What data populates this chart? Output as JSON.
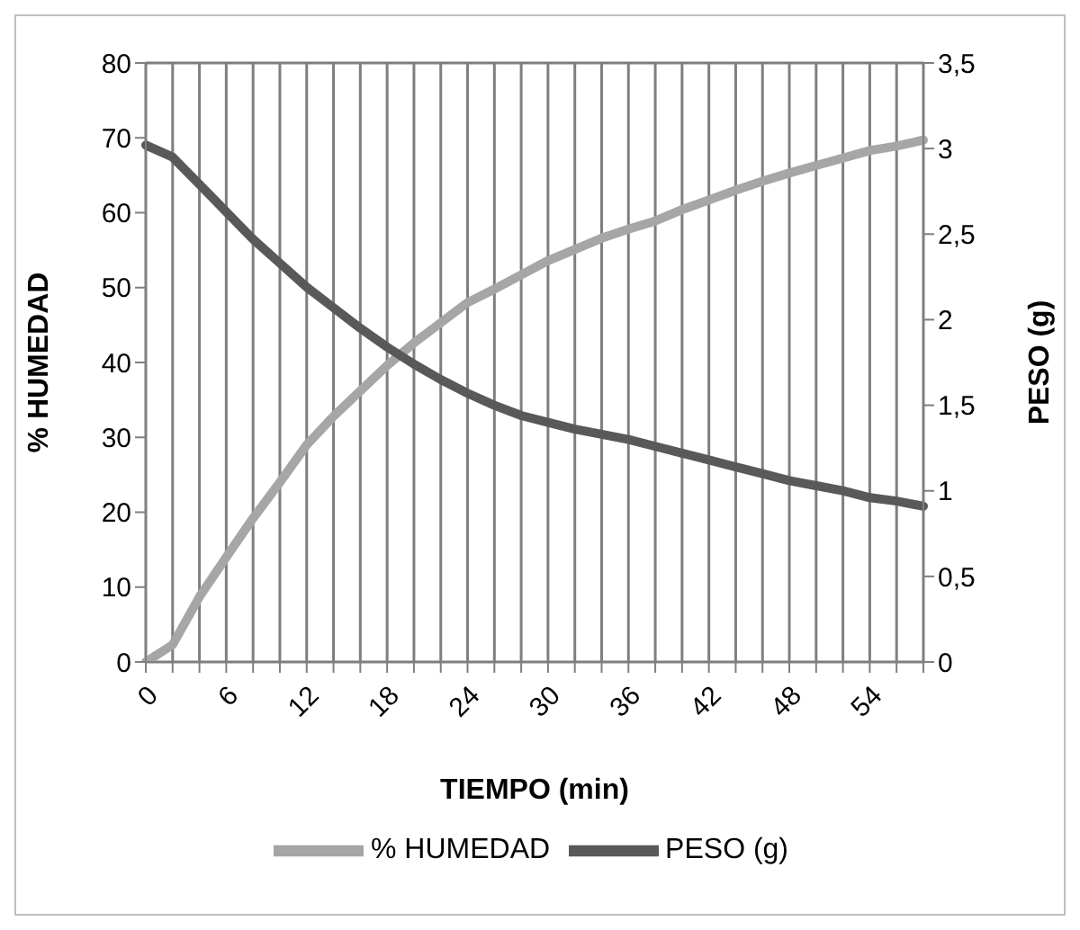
{
  "chart_data": {
    "type": "line",
    "xlabel": "TIEMPO (min)",
    "ylabel": "% HUMEDAD",
    "y2label": "PESO (g)",
    "categories": [
      "0",
      null,
      null,
      "6",
      null,
      null,
      "12",
      null,
      null,
      "18",
      null,
      null,
      "24",
      null,
      null,
      "30",
      null,
      null,
      "36",
      null,
      null,
      "42",
      null,
      null,
      "48",
      null,
      null,
      "54",
      null,
      null
    ],
    "series": [
      {
        "name": "% HUMEDAD",
        "color": "#a6a6a6",
        "values": [
          0,
          2.3,
          8.7,
          14,
          19.2,
          24,
          29,
          32.8,
          36.2,
          39.6,
          42.6,
          45.3,
          48,
          49.8,
          51.7,
          53.6,
          55.1,
          56.6,
          57.8,
          58.9,
          60.4,
          61.7,
          63,
          64.2,
          65.3,
          66.3,
          67.3,
          68.3,
          68.9,
          69.7
        ]
      },
      {
        "name": "PESO (g)",
        "color": "#595959",
        "axis": "y2",
        "values": [
          3.02,
          2.95,
          2.79,
          2.63,
          2.47,
          2.33,
          2.19,
          2.07,
          1.95,
          1.84,
          1.74,
          1.65,
          1.57,
          1.5,
          1.44,
          1.4,
          1.36,
          1.33,
          1.3,
          1.26,
          1.22,
          1.18,
          1.14,
          1.1,
          1.06,
          1.03,
          1.0,
          0.96,
          0.94,
          0.91
        ]
      }
    ],
    "ylim": [
      0,
      80
    ],
    "yticks": [
      0,
      10,
      20,
      30,
      40,
      50,
      60,
      70,
      80
    ],
    "y2lim": [
      0,
      3.5
    ],
    "y2ticks": [
      0,
      {
        "value": 0.5,
        "label": "0,5"
      },
      1,
      {
        "value": 1.5,
        "label": "1,5"
      },
      2,
      {
        "value": 2.5,
        "label": "2,5"
      },
      3,
      {
        "value": 3.5,
        "label": "3,5"
      }
    ],
    "grid": true,
    "legend": "bottom",
    "marker": "none",
    "line_style": "solid"
  }
}
